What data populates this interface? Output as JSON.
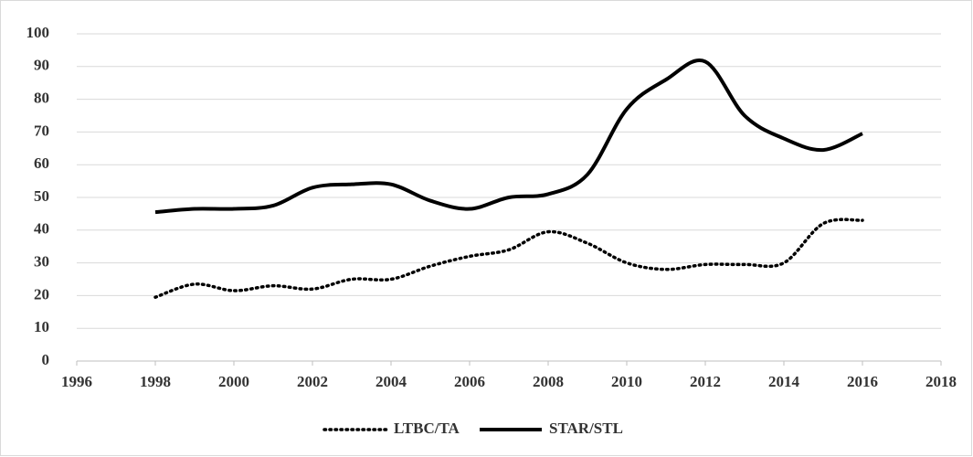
{
  "chart_data": {
    "type": "line",
    "x": [
      1998,
      1999,
      2000,
      2001,
      2002,
      2003,
      2004,
      2005,
      2006,
      2007,
      2008,
      2009,
      2010,
      2011,
      2012,
      2013,
      2014,
      2015,
      2016
    ],
    "series": [
      {
        "name": "LTBC/TA",
        "color": "#000000",
        "dash": "dotted",
        "values": [
          19.5,
          23.5,
          21.5,
          23,
          22,
          25,
          25,
          29,
          32,
          34,
          39.5,
          36,
          30,
          28,
          29.5,
          29.5,
          30,
          42,
          43
        ]
      },
      {
        "name": "STAR/STL",
        "color": "#000000",
        "dash": "solid",
        "values": [
          45.5,
          46.5,
          46.5,
          47.5,
          53,
          54,
          54,
          49,
          46.5,
          50,
          51,
          57,
          77,
          86,
          91.5,
          75,
          68,
          64.5,
          69.5
        ]
      }
    ],
    "xlim": [
      1996,
      2018
    ],
    "xticks": [
      1996,
      1998,
      2000,
      2002,
      2004,
      2006,
      2008,
      2010,
      2012,
      2014,
      2016,
      2018
    ],
    "ylim": [
      0,
      100
    ],
    "yticks": [
      0,
      10,
      20,
      30,
      40,
      50,
      60,
      70,
      80,
      90,
      100
    ],
    "grid": true,
    "legend": "bottom"
  }
}
